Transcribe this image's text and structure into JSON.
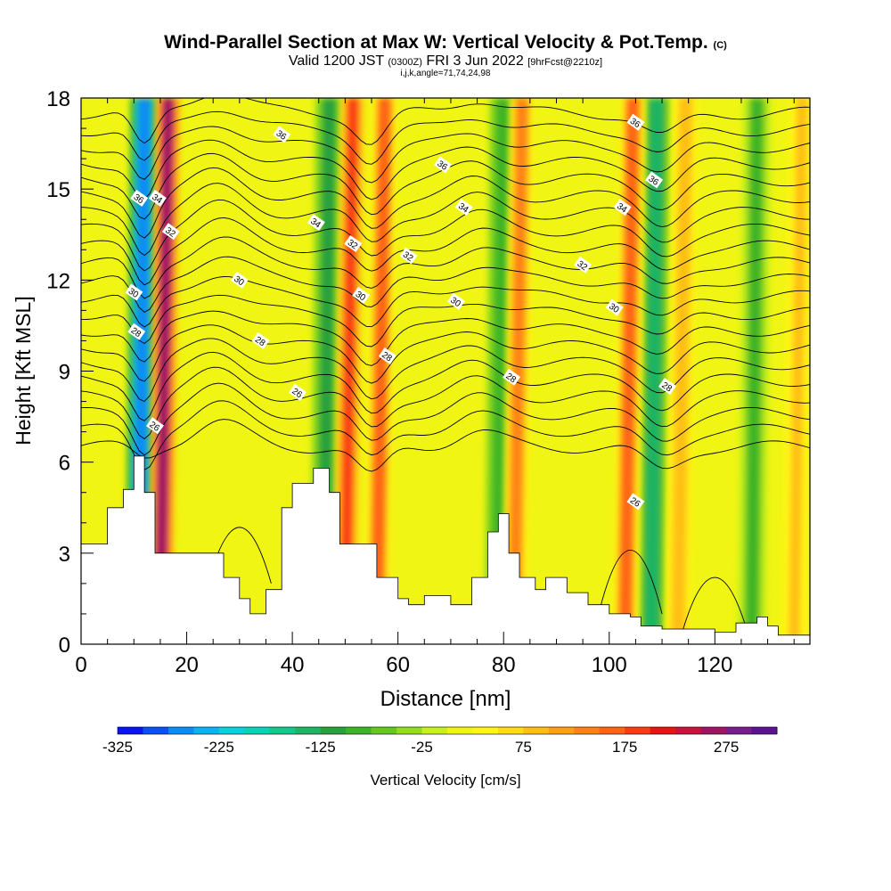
{
  "header": {
    "title": "Wind-Parallel Section at Max W: Vertical Velocity & Pot.Temp.",
    "copyright": "(C)",
    "valid_prefix": "Valid 1200 JST",
    "valid_utc": "(0300Z)",
    "valid_date": "FRI 3 Jun 2022",
    "forecast": "[9hrFcst@2210z]",
    "info": "i,j,k,angle=71,74,24,98"
  },
  "chart_data": {
    "type": "heatmap",
    "xlabel": "Distance [nm]",
    "ylabel": "Height [Kft MSL]",
    "xlim": [
      0,
      138
    ],
    "ylim": [
      0,
      18
    ],
    "x_ticks": [
      0,
      20,
      40,
      60,
      80,
      100,
      120
    ],
    "y_ticks": [
      0,
      3,
      6,
      9,
      12,
      15,
      18
    ],
    "colorbar": {
      "label": "Vertical Velocity [cm/s]",
      "tick_labels": [
        "-325",
        "-225",
        "-125",
        "-25",
        "75",
        "175",
        "275"
      ],
      "ticks": [
        -325,
        -225,
        -125,
        -25,
        75,
        175,
        275
      ],
      "range": [
        -325,
        325
      ],
      "colors": [
        "#0a14f0",
        "#0a50f5",
        "#0a8cf5",
        "#0ab4f0",
        "#0ad2dc",
        "#0ad2b4",
        "#14c88c",
        "#1eb464",
        "#28a03c",
        "#3cb428",
        "#64c81e",
        "#96dc1e",
        "#c8f01e",
        "#f0f514",
        "#fff514",
        "#ffdc14",
        "#ffbe14",
        "#ffa014",
        "#ff8214",
        "#ff6414",
        "#fa3c14",
        "#e61414",
        "#c8143c",
        "#a01464",
        "#781e8c",
        "#5a1490"
      ]
    },
    "updrafts": [
      {
        "x": 15,
        "w": 320
      },
      {
        "x": 50,
        "w": 240
      },
      {
        "x": 56,
        "w": 200
      },
      {
        "x": 82,
        "w": 170
      },
      {
        "x": 103,
        "w": 200
      },
      {
        "x": 113,
        "w": 120
      },
      {
        "x": 135,
        "w": 100
      }
    ],
    "downdrafts": [
      {
        "x": 11,
        "w": -320
      },
      {
        "x": 46,
        "w": -130
      },
      {
        "x": 79,
        "w": -120
      },
      {
        "x": 108,
        "w": -160
      },
      {
        "x": 127,
        "w": -100
      }
    ],
    "terrain_profile": [
      [
        0,
        3.3
      ],
      [
        5,
        4.5
      ],
      [
        8,
        5.1
      ],
      [
        10,
        6.2
      ],
      [
        12,
        5.0
      ],
      [
        14,
        3.0
      ],
      [
        18,
        3.0
      ],
      [
        22,
        3.0
      ],
      [
        27,
        2.2
      ],
      [
        30,
        1.5
      ],
      [
        32,
        1.0
      ],
      [
        35,
        1.8
      ],
      [
        38,
        4.5
      ],
      [
        40,
        5.3
      ],
      [
        44,
        5.8
      ],
      [
        47,
        5.0
      ],
      [
        49,
        3.3
      ],
      [
        54,
        3.3
      ],
      [
        56,
        2.2
      ],
      [
        60,
        1.5
      ],
      [
        62,
        1.3
      ],
      [
        65,
        1.6
      ],
      [
        70,
        1.3
      ],
      [
        74,
        2.2
      ],
      [
        77,
        3.7
      ],
      [
        79,
        4.3
      ],
      [
        81,
        3.0
      ],
      [
        83,
        2.2
      ],
      [
        86,
        1.8
      ],
      [
        88,
        2.2
      ],
      [
        92,
        1.7
      ],
      [
        96,
        1.3
      ],
      [
        100,
        1.0
      ],
      [
        104,
        0.9
      ],
      [
        106,
        0.6
      ],
      [
        110,
        0.5
      ],
      [
        115,
        0.5
      ],
      [
        120,
        0.4
      ],
      [
        124,
        0.7
      ],
      [
        126,
        0.7
      ],
      [
        128,
        0.9
      ],
      [
        130,
        0.6
      ],
      [
        132,
        0.3
      ],
      [
        138,
        0.3
      ]
    ],
    "theta_labels": [
      {
        "text": "36",
        "x": 38,
        "y": 16.8
      },
      {
        "text": "36",
        "x": 68.5,
        "y": 15.8
      },
      {
        "text": "36",
        "x": 105,
        "y": 17.2
      },
      {
        "text": "36",
        "x": 108.5,
        "y": 15.3
      },
      {
        "text": "36",
        "x": 11,
        "y": 14.7
      },
      {
        "text": "34",
        "x": 14.5,
        "y": 14.7
      },
      {
        "text": "34",
        "x": 44.5,
        "y": 13.9
      },
      {
        "text": "34",
        "x": 72.5,
        "y": 14.4
      },
      {
        "text": "34",
        "x": 102.5,
        "y": 14.4
      },
      {
        "text": "32",
        "x": 17,
        "y": 13.6
      },
      {
        "text": "32",
        "x": 51.5,
        "y": 13.2
      },
      {
        "text": "32",
        "x": 62,
        "y": 12.8
      },
      {
        "text": "32",
        "x": 95,
        "y": 12.5
      },
      {
        "text": "30",
        "x": 30,
        "y": 12.0
      },
      {
        "text": "30",
        "x": 10,
        "y": 11.6
      },
      {
        "text": "30",
        "x": 53,
        "y": 11.5
      },
      {
        "text": "30",
        "x": 71,
        "y": 11.3
      },
      {
        "text": "30",
        "x": 101,
        "y": 11.1
      },
      {
        "text": "28",
        "x": 10.5,
        "y": 10.3
      },
      {
        "text": "28",
        "x": 34,
        "y": 10.0
      },
      {
        "text": "28",
        "x": 58,
        "y": 9.5
      },
      {
        "text": "28",
        "x": 81.5,
        "y": 8.8
      },
      {
        "text": "28",
        "x": 111,
        "y": 8.5
      },
      {
        "text": "26",
        "x": 41,
        "y": 8.3
      },
      {
        "text": "26",
        "x": 14,
        "y": 7.2
      },
      {
        "text": "26",
        "x": 105,
        "y": 4.7
      }
    ]
  }
}
